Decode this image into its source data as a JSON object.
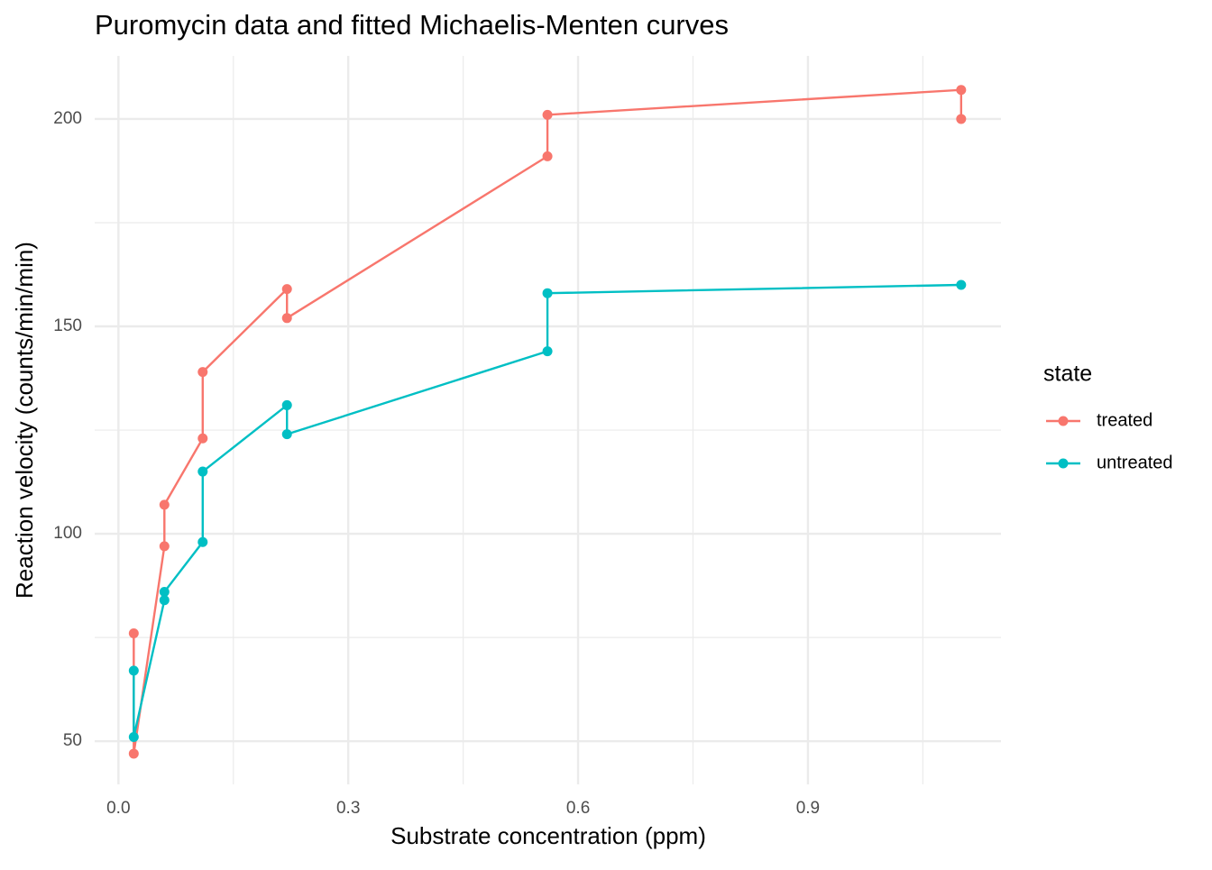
{
  "chart_data": {
    "type": "line",
    "title": "Puromycin data and fitted Michaelis-Menten curves",
    "x_label": "Substrate concentration (ppm)",
    "y_label": "Reaction velocity (counts/min/min)",
    "legend_title": "state",
    "legend_position": "right",
    "grid": true,
    "xlim": [
      -0.031,
      1.152
    ],
    "ylim": [
      39.6,
      215.2
    ],
    "xticks": [
      {
        "value": 0,
        "label": "0.0"
      },
      0.3,
      0.6,
      0.9
    ],
    "yticks": [
      50,
      100,
      150,
      200
    ],
    "x_minor_grid": [
      0.15,
      0.45,
      0.75,
      1.05
    ],
    "y_minor_grid": [
      75,
      125,
      175
    ],
    "series": [
      {
        "name": "treated",
        "color": "#F8766D",
        "x": [
          0.02,
          0.02,
          0.06,
          0.06,
          0.11,
          0.11,
          0.22,
          0.22,
          0.56,
          0.56,
          1.1,
          1.1
        ],
        "values": [
          76,
          47,
          97,
          107,
          123,
          139,
          159,
          152,
          191,
          201,
          207,
          200
        ]
      },
      {
        "name": "untreated",
        "color": "#00BFC4",
        "x": [
          0.02,
          0.02,
          0.06,
          0.06,
          0.11,
          0.11,
          0.22,
          0.22,
          0.56,
          0.56,
          1.1
        ],
        "values": [
          67,
          51,
          84,
          86,
          98,
          115,
          131,
          124,
          144,
          158,
          160
        ]
      }
    ]
  }
}
